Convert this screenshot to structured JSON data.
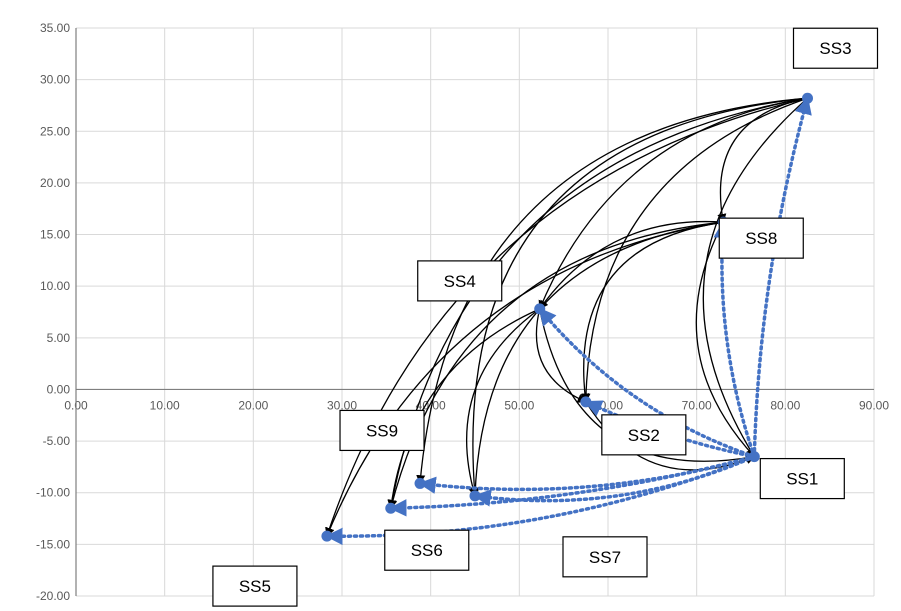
{
  "chart_data": {
    "type": "scatter",
    "title": "",
    "xlabel": "",
    "ylabel": "",
    "xlim": [
      0,
      90
    ],
    "ylim": [
      -20,
      35
    ],
    "x_ticks": [
      "0.00",
      "10.00",
      "20.00",
      "30.00",
      "40.00",
      "50.00",
      "60.00",
      "70.00",
      "80.00",
      "90.00"
    ],
    "y_ticks": [
      "35.00",
      "30.00",
      "25.00",
      "20.00",
      "15.00",
      "10.00",
      "5.00",
      "0.00",
      "-5.00",
      "-10.00",
      "-15.00",
      "-20.00"
    ],
    "grid": true,
    "legend": "none",
    "colors": {
      "accent": "#4472C4",
      "curve": "#000000",
      "grid": "#d9d9d9",
      "axis": "#7f7f7f"
    },
    "points": [
      {
        "name": "SS1",
        "x": 76.5,
        "y": -6.5
      },
      {
        "name": "SS2",
        "x": 57.5,
        "y": -1.2
      },
      {
        "name": "SS3",
        "x": 82.5,
        "y": 28.2
      },
      {
        "name": "SS4",
        "x": 52.3,
        "y": 7.8
      },
      {
        "name": "SS5",
        "x": 28.3,
        "y": -14.2
      },
      {
        "name": "SS6",
        "x": 35.5,
        "y": -11.5
      },
      {
        "name": "SS7",
        "x": 45.0,
        "y": -10.3
      },
      {
        "name": "SS8",
        "x": 73.0,
        "y": 16.2
      },
      {
        "name": "SS9",
        "x": 38.8,
        "y": -9.1
      }
    ],
    "series": [
      {
        "values": [
          [
            "SS1",
            "SS3"
          ],
          [
            "SS1",
            "SS8"
          ],
          [
            "SS1",
            "SS4"
          ],
          [
            "SS1",
            "SS2"
          ],
          [
            "SS1",
            "SS9"
          ],
          [
            "SS1",
            "SS7"
          ],
          [
            "SS1",
            "SS6"
          ],
          [
            "SS1",
            "SS5"
          ]
        ]
      },
      {
        "values": [
          [
            "SS3",
            "SS5"
          ],
          [
            "SS3",
            "SS6"
          ],
          [
            "SS3",
            "SS9"
          ],
          [
            "SS3",
            "SS7"
          ],
          [
            "SS3",
            "SS4"
          ],
          [
            "SS3",
            "SS2"
          ],
          [
            "SS3",
            "SS1"
          ],
          [
            "SS3",
            "SS8"
          ],
          [
            "SS8",
            "SS5"
          ],
          [
            "SS8",
            "SS6"
          ],
          [
            "SS8",
            "SS7"
          ],
          [
            "SS8",
            "SS2"
          ],
          [
            "SS8",
            "SS4"
          ],
          [
            "SS8",
            "SS1"
          ],
          [
            "SS4",
            "SS2"
          ],
          [
            "SS4",
            "SS1"
          ],
          [
            "SS4",
            "SS6"
          ],
          [
            "SS4",
            "SS7"
          ],
          [
            "SS2",
            "SS1"
          ]
        ]
      }
    ]
  }
}
